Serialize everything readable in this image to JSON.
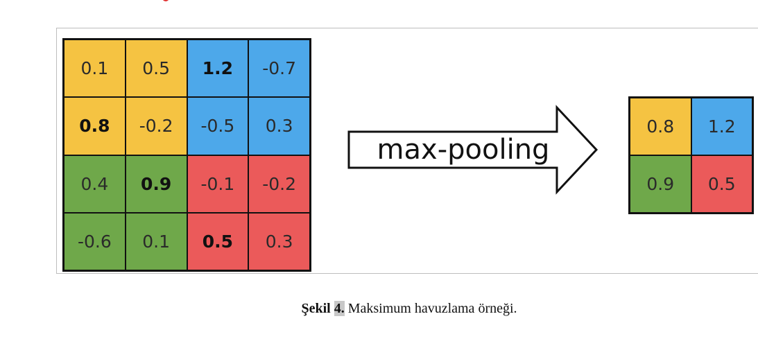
{
  "colors": {
    "yellow": "#f5c342",
    "blue": "#4da8ea",
    "green": "#6fa84a",
    "red": "#eb5a5a"
  },
  "input_grid": [
    [
      {
        "value": "0.1",
        "color": "yellow",
        "max": false
      },
      {
        "value": "0.5",
        "color": "yellow",
        "max": false
      },
      {
        "value": "1.2",
        "color": "blue",
        "max": true
      },
      {
        "value": "-0.7",
        "color": "blue",
        "max": false
      }
    ],
    [
      {
        "value": "0.8",
        "color": "yellow",
        "max": true
      },
      {
        "value": "-0.2",
        "color": "yellow",
        "max": false
      },
      {
        "value": "-0.5",
        "color": "blue",
        "max": false
      },
      {
        "value": "0.3",
        "color": "blue",
        "max": false
      }
    ],
    [
      {
        "value": "0.4",
        "color": "green",
        "max": false
      },
      {
        "value": "0.9",
        "color": "green",
        "max": true
      },
      {
        "value": "-0.1",
        "color": "red",
        "max": false
      },
      {
        "value": "-0.2",
        "color": "red",
        "max": false
      }
    ],
    [
      {
        "value": "-0.6",
        "color": "green",
        "max": false
      },
      {
        "value": "0.1",
        "color": "green",
        "max": false
      },
      {
        "value": "0.5",
        "color": "red",
        "max": true
      },
      {
        "value": "0.3",
        "color": "red",
        "max": false
      }
    ]
  ],
  "output_grid": [
    [
      {
        "value": "0.8",
        "color": "yellow"
      },
      {
        "value": "1.2",
        "color": "blue"
      }
    ],
    [
      {
        "value": "0.9",
        "color": "green"
      },
      {
        "value": "0.5",
        "color": "red"
      }
    ]
  ],
  "arrow": {
    "label": "max-pooling"
  },
  "caption": {
    "prefix": "Şekil",
    "number": "4.",
    "text": "Maksimum havuzlama örneği."
  }
}
